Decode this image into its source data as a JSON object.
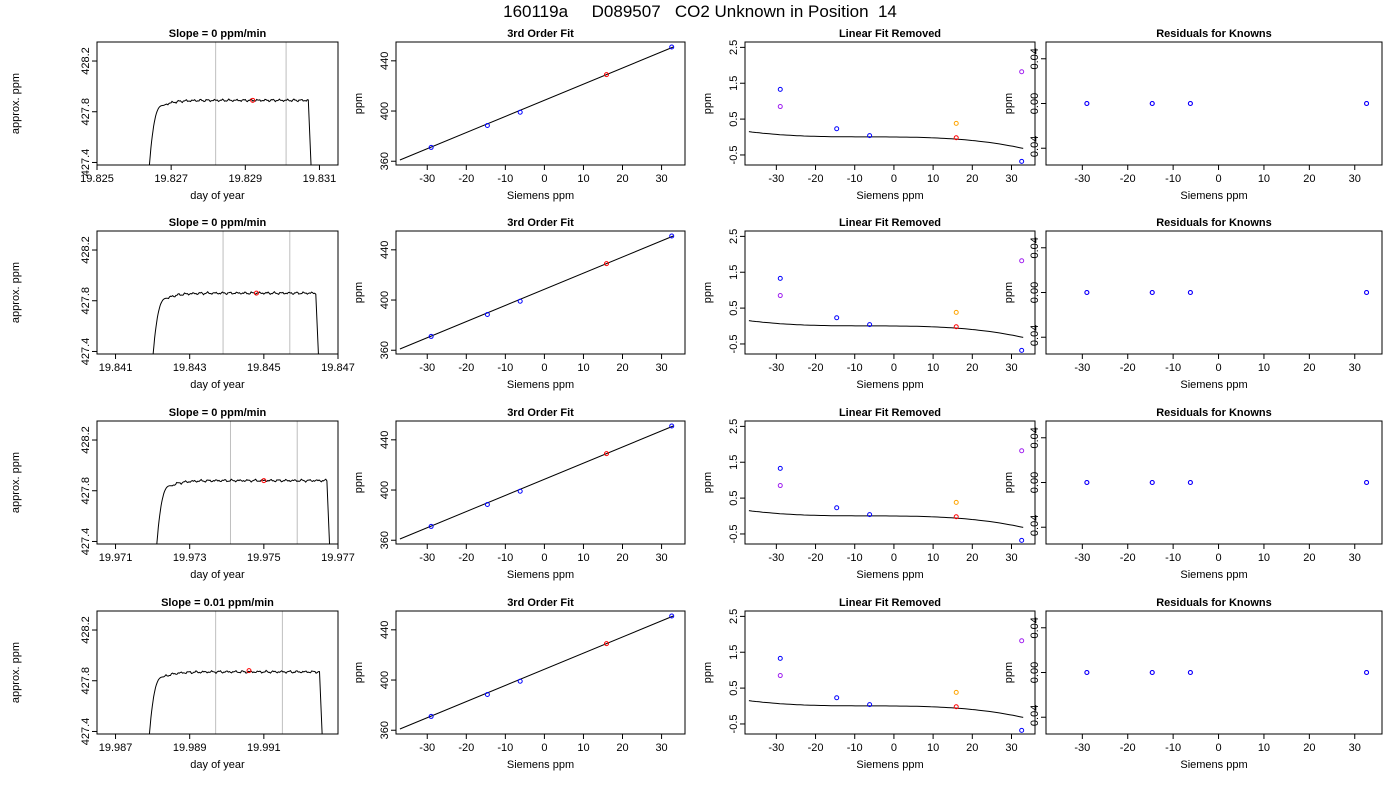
{
  "page_title": "160119a     D089507   CO2 Unknown in Position  14",
  "colors": {
    "line": "#000000",
    "known": "#0000ff",
    "unknown": "#ff0000",
    "raw_known": "#a020f0",
    "raw_unknown": "#ffa500",
    "vline": "#bebebe"
  },
  "chart_data": [
    {
      "type": "line",
      "row": 0,
      "col": 0,
      "title": "Slope =  0  ppm/min",
      "xlabel": "day of year",
      "ylabel": "approx. ppm",
      "xlim": [
        19.825,
        19.8315
      ],
      "ylim": [
        427.38,
        428.35
      ],
      "xticks": [
        19.825,
        19.827,
        19.829,
        19.831
      ],
      "xtick_labels": [
        "19.825",
        "19.827",
        "19.829",
        "19.831"
      ],
      "yticks": [
        427.4,
        427.8,
        428.2
      ],
      "ytick_labels": [
        "427.4",
        "427.8",
        "428.2"
      ],
      "vlines": [
        19.8282,
        19.8301
      ],
      "trace_start": 19.8264,
      "trace_rise_end": 19.8268,
      "trace_end": 19.8307,
      "trace_level": 427.89,
      "marker": {
        "x": 19.8292,
        "y": 427.89
      }
    },
    {
      "type": "scatter",
      "row": 0,
      "col": 1,
      "title": "3rd Order Fit",
      "xlabel": "Siemens ppm",
      "ylabel": "ppm",
      "xlim": [
        -38,
        36
      ],
      "ylim": [
        357,
        455
      ],
      "xticks": [
        -30,
        -20,
        -10,
        0,
        10,
        20,
        30
      ],
      "xtick_labels": [
        "-30",
        "-20",
        "-10",
        "0",
        "10",
        "20",
        "30"
      ],
      "yticks": [
        360,
        400,
        440
      ],
      "ytick_labels": [
        "360",
        "400",
        "440"
      ],
      "fit_line": {
        "x": [
          -37,
          33
        ],
        "y": [
          361,
          451
        ]
      },
      "points_known": {
        "x": [
          -29,
          -14.6,
          -6.2,
          32.6
        ],
        "y": [
          371,
          388.5,
          399,
          451
        ]
      },
      "points_unknown": {
        "x": [
          15.9
        ],
        "y": [
          429
        ]
      }
    },
    {
      "type": "scatter",
      "row": 0,
      "col": 2,
      "title": "Linear Fit Removed",
      "xlabel": "Siemens ppm",
      "ylabel": "ppm",
      "xlim": [
        -38,
        36
      ],
      "ylim": [
        -0.78,
        2.65
      ],
      "xticks": [
        -30,
        -20,
        -10,
        0,
        10,
        20,
        30
      ],
      "xtick_labels": [
        "-30",
        "-20",
        "-10",
        "0",
        "10",
        "20",
        "30"
      ],
      "yticks": [
        -0.5,
        0.5,
        1.5,
        2.5
      ],
      "ytick_labels": [
        "-0.5",
        "0.5",
        "1.5",
        "2.5"
      ],
      "curve_coeffs": [
        0.001,
        -0.0009,
        -0.0001,
        -5e-06
      ],
      "curve_xrange": [
        -37,
        33
      ],
      "points_known": {
        "x": [
          -29,
          -14.6,
          -6.2,
          32.6
        ],
        "y": [
          1.33,
          0.23,
          0.04,
          -0.68
        ]
      },
      "points_unknown": {
        "x": [
          15.9
        ],
        "y": [
          -0.02
        ]
      },
      "points_raw_known": {
        "x": [
          -29,
          32.6
        ],
        "y": [
          0.85,
          1.82
        ]
      },
      "points_raw_unknown": {
        "x": [
          15.9
        ],
        "y": [
          0.38
        ]
      }
    },
    {
      "type": "scatter",
      "row": 0,
      "col": 3,
      "title": "Residuals for Knowns",
      "xlabel": "Siemens ppm",
      "ylabel": "ppm",
      "xlim": [
        -38,
        36
      ],
      "ylim": [
        -0.055,
        0.055
      ],
      "xticks": [
        -30,
        -20,
        -10,
        0,
        10,
        20,
        30
      ],
      "xtick_labels": [
        "-30",
        "-20",
        "-10",
        "0",
        "10",
        "20",
        "30"
      ],
      "yticks": [
        -0.04,
        0.0,
        0.04
      ],
      "ytick_labels": [
        "-0.04",
        "0.00",
        "0.04"
      ],
      "points_known": {
        "x": [
          -29,
          -14.6,
          -6.2,
          32.6
        ],
        "y": [
          0,
          0,
          0,
          0
        ]
      },
      "points_raw_known": {
        "x": [
          -29,
          -14.6,
          -6.2,
          32.6
        ],
        "y": [
          0,
          0,
          0,
          0
        ]
      }
    },
    {
      "type": "line",
      "row": 1,
      "col": 0,
      "title": "Slope =  0  ppm/min",
      "xlabel": "day of year",
      "ylabel": "approx. ppm",
      "xlim": [
        19.8405,
        19.847
      ],
      "ylim": [
        427.38,
        428.35
      ],
      "xticks": [
        19.841,
        19.843,
        19.845,
        19.847
      ],
      "xtick_labels": [
        "19.841",
        "19.843",
        "19.845",
        "19.847"
      ],
      "yticks": [
        427.4,
        427.8,
        428.2
      ],
      "ytick_labels": [
        "427.4",
        "427.8",
        "428.2"
      ],
      "vlines": [
        19.8439,
        19.8457
      ],
      "trace_start": 19.842,
      "trace_rise_end": 19.8424,
      "trace_end": 19.8464,
      "trace_level": 427.86,
      "marker": {
        "x": 19.8448,
        "y": 427.86
      }
    },
    {
      "type": "scatter",
      "row": 1,
      "col": 1,
      "title": "3rd Order Fit",
      "xlabel": "Siemens ppm",
      "ylabel": "ppm",
      "xlim": [
        -38,
        36
      ],
      "ylim": [
        357,
        455
      ],
      "xticks": [
        -30,
        -20,
        -10,
        0,
        10,
        20,
        30
      ],
      "xtick_labels": [
        "-30",
        "-20",
        "-10",
        "0",
        "10",
        "20",
        "30"
      ],
      "yticks": [
        360,
        400,
        440
      ],
      "ytick_labels": [
        "360",
        "400",
        "440"
      ],
      "fit_line": {
        "x": [
          -37,
          33
        ],
        "y": [
          361,
          451
        ]
      },
      "points_known": {
        "x": [
          -29,
          -14.6,
          -6.2,
          32.6
        ],
        "y": [
          371,
          388.5,
          399,
          451
        ]
      },
      "points_unknown": {
        "x": [
          15.9
        ],
        "y": [
          429
        ]
      }
    },
    {
      "type": "scatter",
      "row": 1,
      "col": 2,
      "title": "Linear Fit Removed",
      "xlabel": "Siemens ppm",
      "ylabel": "ppm",
      "xlim": [
        -38,
        36
      ],
      "ylim": [
        -0.78,
        2.65
      ],
      "xticks": [
        -30,
        -20,
        -10,
        0,
        10,
        20,
        30
      ],
      "xtick_labels": [
        "-30",
        "-20",
        "-10",
        "0",
        "10",
        "20",
        "30"
      ],
      "yticks": [
        -0.5,
        0.5,
        1.5,
        2.5
      ],
      "ytick_labels": [
        "-0.5",
        "0.5",
        "1.5",
        "2.5"
      ],
      "curve_coeffs": [
        0.001,
        -0.0009,
        -0.0001,
        -5e-06
      ],
      "curve_xrange": [
        -37,
        33
      ],
      "points_known": {
        "x": [
          -29,
          -14.6,
          -6.2,
          32.6
        ],
        "y": [
          1.33,
          0.23,
          0.04,
          -0.68
        ]
      },
      "points_unknown": {
        "x": [
          15.9
        ],
        "y": [
          -0.02
        ]
      },
      "points_raw_known": {
        "x": [
          -29,
          32.6
        ],
        "y": [
          0.85,
          1.82
        ]
      },
      "points_raw_unknown": {
        "x": [
          15.9
        ],
        "y": [
          0.38
        ]
      }
    },
    {
      "type": "scatter",
      "row": 1,
      "col": 3,
      "title": "Residuals for Knowns",
      "xlabel": "Siemens ppm",
      "ylabel": "ppm",
      "xlim": [
        -38,
        36
      ],
      "ylim": [
        -0.055,
        0.055
      ],
      "xticks": [
        -30,
        -20,
        -10,
        0,
        10,
        20,
        30
      ],
      "xtick_labels": [
        "-30",
        "-20",
        "-10",
        "0",
        "10",
        "20",
        "30"
      ],
      "yticks": [
        -0.04,
        0.0,
        0.04
      ],
      "ytick_labels": [
        "-0.04",
        "0.00",
        "0.04"
      ],
      "points_known": {
        "x": [
          -29,
          -14.6,
          -6.2,
          32.6
        ],
        "y": [
          0,
          0,
          0,
          0
        ]
      },
      "points_raw_known": {
        "x": [
          -29,
          -14.6,
          -6.2,
          32.6
        ],
        "y": [
          0,
          0,
          0,
          0
        ]
      }
    },
    {
      "type": "line",
      "row": 2,
      "col": 0,
      "title": "Slope =  0  ppm/min",
      "xlabel": "day of year",
      "ylabel": "approx. ppm",
      "xlim": [
        19.9705,
        19.977
      ],
      "ylim": [
        427.38,
        428.35
      ],
      "xticks": [
        19.971,
        19.973,
        19.975,
        19.977
      ],
      "xtick_labels": [
        "19.971",
        "19.973",
        "19.975",
        "19.977"
      ],
      "yticks": [
        427.4,
        427.8,
        428.2
      ],
      "ytick_labels": [
        "427.4",
        "427.8",
        "428.2"
      ],
      "vlines": [
        19.9741,
        19.9759
      ],
      "trace_start": 19.9721,
      "trace_rise_end": 19.9725,
      "trace_end": 19.9767,
      "trace_level": 427.88,
      "marker": {
        "x": 19.975,
        "y": 427.88
      }
    },
    {
      "type": "scatter",
      "row": 2,
      "col": 1,
      "title": "3rd Order Fit",
      "xlabel": "Siemens ppm",
      "ylabel": "ppm",
      "xlim": [
        -38,
        36
      ],
      "ylim": [
        357,
        455
      ],
      "xticks": [
        -30,
        -20,
        -10,
        0,
        10,
        20,
        30
      ],
      "xtick_labels": [
        "-30",
        "-20",
        "-10",
        "0",
        "10",
        "20",
        "30"
      ],
      "yticks": [
        360,
        400,
        440
      ],
      "ytick_labels": [
        "360",
        "400",
        "440"
      ],
      "fit_line": {
        "x": [
          -37,
          33
        ],
        "y": [
          361,
          451
        ]
      },
      "points_known": {
        "x": [
          -29,
          -14.6,
          -6.2,
          32.6
        ],
        "y": [
          371,
          388.5,
          399,
          451
        ]
      },
      "points_unknown": {
        "x": [
          15.9
        ],
        "y": [
          429
        ]
      }
    },
    {
      "type": "scatter",
      "row": 2,
      "col": 2,
      "title": "Linear Fit Removed",
      "xlabel": "Siemens ppm",
      "ylabel": "ppm",
      "xlim": [
        -38,
        36
      ],
      "ylim": [
        -0.78,
        2.65
      ],
      "xticks": [
        -30,
        -20,
        -10,
        0,
        10,
        20,
        30
      ],
      "xtick_labels": [
        "-30",
        "-20",
        "-10",
        "0",
        "10",
        "20",
        "30"
      ],
      "yticks": [
        -0.5,
        0.5,
        1.5,
        2.5
      ],
      "ytick_labels": [
        "-0.5",
        "0.5",
        "1.5",
        "2.5"
      ],
      "curve_coeffs": [
        0.001,
        -0.0009,
        -0.0001,
        -5e-06
      ],
      "curve_xrange": [
        -37,
        33
      ],
      "points_known": {
        "x": [
          -29,
          -14.6,
          -6.2,
          32.6
        ],
        "y": [
          1.33,
          0.23,
          0.04,
          -0.68
        ]
      },
      "points_unknown": {
        "x": [
          15.9
        ],
        "y": [
          -0.02
        ]
      },
      "points_raw_known": {
        "x": [
          -29,
          32.6
        ],
        "y": [
          0.85,
          1.82
        ]
      },
      "points_raw_unknown": {
        "x": [
          15.9
        ],
        "y": [
          0.38
        ]
      }
    },
    {
      "type": "scatter",
      "row": 2,
      "col": 3,
      "title": "Residuals for Knowns",
      "xlabel": "Siemens ppm",
      "ylabel": "ppm",
      "xlim": [
        -38,
        36
      ],
      "ylim": [
        -0.055,
        0.055
      ],
      "xticks": [
        -30,
        -20,
        -10,
        0,
        10,
        20,
        30
      ],
      "xtick_labels": [
        "-30",
        "-20",
        "-10",
        "0",
        "10",
        "20",
        "30"
      ],
      "yticks": [
        -0.04,
        0.0,
        0.04
      ],
      "ytick_labels": [
        "-0.04",
        "0.00",
        "0.04"
      ],
      "points_known": {
        "x": [
          -29,
          -14.6,
          -6.2,
          32.6
        ],
        "y": [
          0,
          0,
          0,
          0
        ]
      },
      "points_raw_known": {
        "x": [
          -29,
          -14.6,
          -6.2,
          32.6
        ],
        "y": [
          0,
          0,
          0,
          0
        ]
      }
    },
    {
      "type": "line",
      "row": 3,
      "col": 0,
      "title": "Slope =  0.01  ppm/min",
      "xlabel": "day of year",
      "ylabel": "approx. ppm",
      "xlim": [
        19.9865,
        19.993
      ],
      "ylim": [
        427.38,
        428.35
      ],
      "xticks": [
        19.987,
        19.989,
        19.991
      ],
      "xtick_labels": [
        "19.987",
        "19.989",
        "19.991"
      ],
      "yticks": [
        427.4,
        427.8,
        428.2
      ],
      "ytick_labels": [
        "427.4",
        "427.8",
        "428.2"
      ],
      "vlines": [
        19.9897,
        19.9915
      ],
      "trace_start": 19.9879,
      "trace_rise_end": 19.9883,
      "trace_end": 19.9925,
      "trace_level": 427.87,
      "marker": {
        "x": 19.9906,
        "y": 427.88
      }
    },
    {
      "type": "scatter",
      "row": 3,
      "col": 1,
      "title": "3rd Order Fit",
      "xlabel": "Siemens ppm",
      "ylabel": "ppm",
      "xlim": [
        -38,
        36
      ],
      "ylim": [
        357,
        455
      ],
      "xticks": [
        -30,
        -20,
        -10,
        0,
        10,
        20,
        30
      ],
      "xtick_labels": [
        "-30",
        "-20",
        "-10",
        "0",
        "10",
        "20",
        "30"
      ],
      "yticks": [
        360,
        400,
        440
      ],
      "ytick_labels": [
        "360",
        "400",
        "440"
      ],
      "fit_line": {
        "x": [
          -37,
          33
        ],
        "y": [
          361,
          451
        ]
      },
      "points_known": {
        "x": [
          -29,
          -14.6,
          -6.2,
          32.6
        ],
        "y": [
          371,
          388.5,
          399,
          451
        ]
      },
      "points_unknown": {
        "x": [
          15.9
        ],
        "y": [
          429
        ]
      }
    },
    {
      "type": "scatter",
      "row": 3,
      "col": 2,
      "title": "Linear Fit Removed",
      "xlabel": "Siemens ppm",
      "ylabel": "ppm",
      "xlim": [
        -38,
        36
      ],
      "ylim": [
        -0.78,
        2.65
      ],
      "xticks": [
        -30,
        -20,
        -10,
        0,
        10,
        20,
        30
      ],
      "xtick_labels": [
        "-30",
        "-20",
        "-10",
        "0",
        "10",
        "20",
        "30"
      ],
      "yticks": [
        -0.5,
        0.5,
        1.5,
        2.5
      ],
      "ytick_labels": [
        "-0.5",
        "0.5",
        "1.5",
        "2.5"
      ],
      "curve_coeffs": [
        0.001,
        -0.0009,
        -0.0001,
        -5e-06
      ],
      "curve_xrange": [
        -37,
        33
      ],
      "points_known": {
        "x": [
          -29,
          -14.6,
          -6.2,
          32.6
        ],
        "y": [
          1.33,
          0.23,
          0.04,
          -0.68
        ]
      },
      "points_unknown": {
        "x": [
          15.9
        ],
        "y": [
          -0.02
        ]
      },
      "points_raw_known": {
        "x": [
          -29,
          32.6
        ],
        "y": [
          0.85,
          1.82
        ]
      },
      "points_raw_unknown": {
        "x": [
          15.9
        ],
        "y": [
          0.38
        ]
      }
    },
    {
      "type": "scatter",
      "row": 3,
      "col": 3,
      "title": "Residuals for Knowns",
      "xlabel": "Siemens ppm",
      "ylabel": "ppm",
      "xlim": [
        -38,
        36
      ],
      "ylim": [
        -0.055,
        0.055
      ],
      "xticks": [
        -30,
        -20,
        -10,
        0,
        10,
        20,
        30
      ],
      "xtick_labels": [
        "-30",
        "-20",
        "-10",
        "0",
        "10",
        "20",
        "30"
      ],
      "yticks": [
        -0.04,
        0.0,
        0.04
      ],
      "ytick_labels": [
        "-0.04",
        "0.00",
        "0.04"
      ],
      "points_known": {
        "x": [
          -29,
          -14.6,
          -6.2,
          32.6
        ],
        "y": [
          0,
          0,
          0,
          0
        ]
      },
      "points_raw_known": {
        "x": [
          -29,
          -14.6,
          -6.2,
          32.6
        ],
        "y": [
          0,
          0,
          0,
          0
        ]
      }
    }
  ]
}
